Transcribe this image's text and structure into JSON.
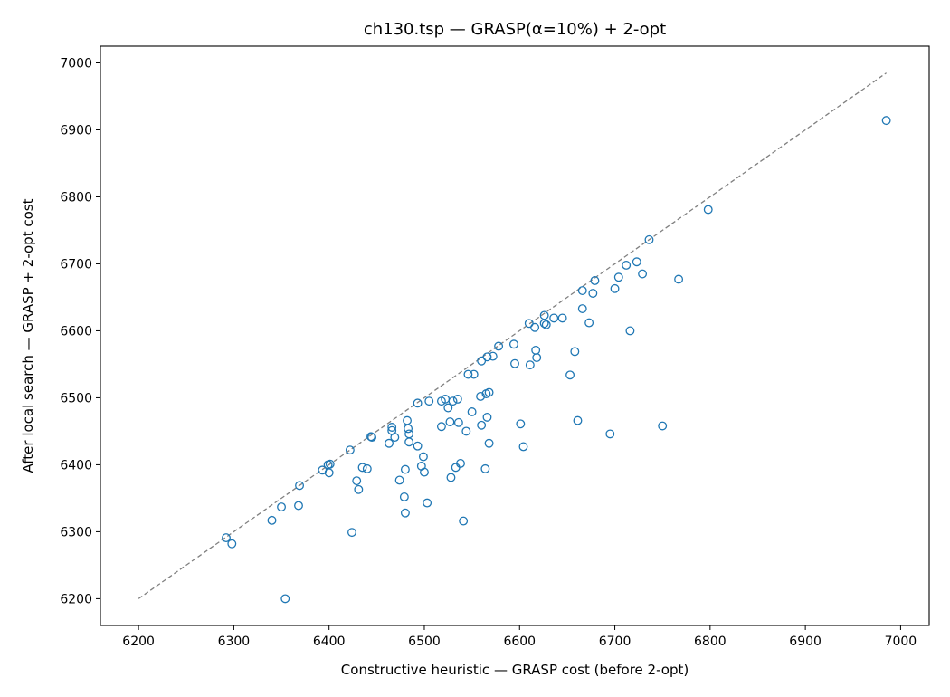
{
  "chart_data": {
    "type": "scatter",
    "title": "ch130.tsp — GRASP(α=10%) + 2-opt",
    "xlabel": "Constructive heuristic — GRASP cost (before 2-opt)",
    "ylabel": "After local search — GRASP + 2-opt cost",
    "xlim": [
      6160,
      7030
    ],
    "ylim": [
      6160,
      7025
    ],
    "xticks": [
      6200,
      6300,
      6400,
      6500,
      6600,
      6700,
      6800,
      6900,
      7000
    ],
    "yticks": [
      6200,
      6300,
      6400,
      6500,
      6600,
      6700,
      6800,
      6900,
      7000
    ],
    "grid": false,
    "marker_color": "#1f77b4",
    "reference_line": {
      "style": "dashed",
      "color": "#808080",
      "from": [
        6200,
        6200
      ],
      "to": [
        6985,
        6985
      ]
    },
    "points": [
      [
        6292,
        6291
      ],
      [
        6298,
        6282
      ],
      [
        6340,
        6317
      ],
      [
        6350,
        6337
      ],
      [
        6354,
        6200
      ],
      [
        6368,
        6339
      ],
      [
        6369,
        6369
      ],
      [
        6393,
        6392
      ],
      [
        6399,
        6400
      ],
      [
        6400,
        6388
      ],
      [
        6401,
        6401
      ],
      [
        6422,
        6422
      ],
      [
        6424,
        6299
      ],
      [
        6429,
        6376
      ],
      [
        6431,
        6363
      ],
      [
        6435,
        6396
      ],
      [
        6440,
        6394
      ],
      [
        6444,
        6442
      ],
      [
        6445,
        6441
      ],
      [
        6463,
        6432
      ],
      [
        6466,
        6456
      ],
      [
        6466,
        6451
      ],
      [
        6469,
        6441
      ],
      [
        6474,
        6377
      ],
      [
        6479,
        6352
      ],
      [
        6480,
        6393
      ],
      [
        6480,
        6328
      ],
      [
        6482,
        6466
      ],
      [
        6483,
        6454
      ],
      [
        6484,
        6446
      ],
      [
        6484,
        6434
      ],
      [
        6493,
        6492
      ],
      [
        6493,
        6428
      ],
      [
        6497,
        6398
      ],
      [
        6499,
        6412
      ],
      [
        6500,
        6389
      ],
      [
        6503,
        6343
      ],
      [
        6505,
        6495
      ],
      [
        6518,
        6495
      ],
      [
        6518,
        6457
      ],
      [
        6522,
        6498
      ],
      [
        6525,
        6485
      ],
      [
        6527,
        6464
      ],
      [
        6528,
        6381
      ],
      [
        6530,
        6495
      ],
      [
        6533,
        6396
      ],
      [
        6535,
        6498
      ],
      [
        6536,
        6463
      ],
      [
        6538,
        6402
      ],
      [
        6541,
        6316
      ],
      [
        6544,
        6450
      ],
      [
        6546,
        6535
      ],
      [
        6550,
        6479
      ],
      [
        6552,
        6535
      ],
      [
        6559,
        6502
      ],
      [
        6560,
        6555
      ],
      [
        6560,
        6459
      ],
      [
        6564,
        6394
      ],
      [
        6565,
        6506
      ],
      [
        6566,
        6561
      ],
      [
        6566,
        6471
      ],
      [
        6568,
        6508
      ],
      [
        6568,
        6432
      ],
      [
        6572,
        6562
      ],
      [
        6578,
        6577
      ],
      [
        6594,
        6580
      ],
      [
        6595,
        6551
      ],
      [
        6601,
        6461
      ],
      [
        6604,
        6427
      ],
      [
        6610,
        6611
      ],
      [
        6611,
        6549
      ],
      [
        6616,
        6605
      ],
      [
        6617,
        6571
      ],
      [
        6618,
        6560
      ],
      [
        6626,
        6623
      ],
      [
        6626,
        6611
      ],
      [
        6628,
        6609
      ],
      [
        6636,
        6619
      ],
      [
        6645,
        6619
      ],
      [
        6653,
        6534
      ],
      [
        6658,
        6569
      ],
      [
        6661,
        6466
      ],
      [
        6666,
        6660
      ],
      [
        6666,
        6633
      ],
      [
        6673,
        6612
      ],
      [
        6677,
        6656
      ],
      [
        6679,
        6675
      ],
      [
        6695,
        6446
      ],
      [
        6700,
        6663
      ],
      [
        6704,
        6680
      ],
      [
        6712,
        6698
      ],
      [
        6716,
        6600
      ],
      [
        6723,
        6703
      ],
      [
        6729,
        6685
      ],
      [
        6736,
        6736
      ],
      [
        6750,
        6458
      ],
      [
        6767,
        6677
      ],
      [
        6798,
        6781
      ],
      [
        6985,
        6914
      ]
    ]
  }
}
